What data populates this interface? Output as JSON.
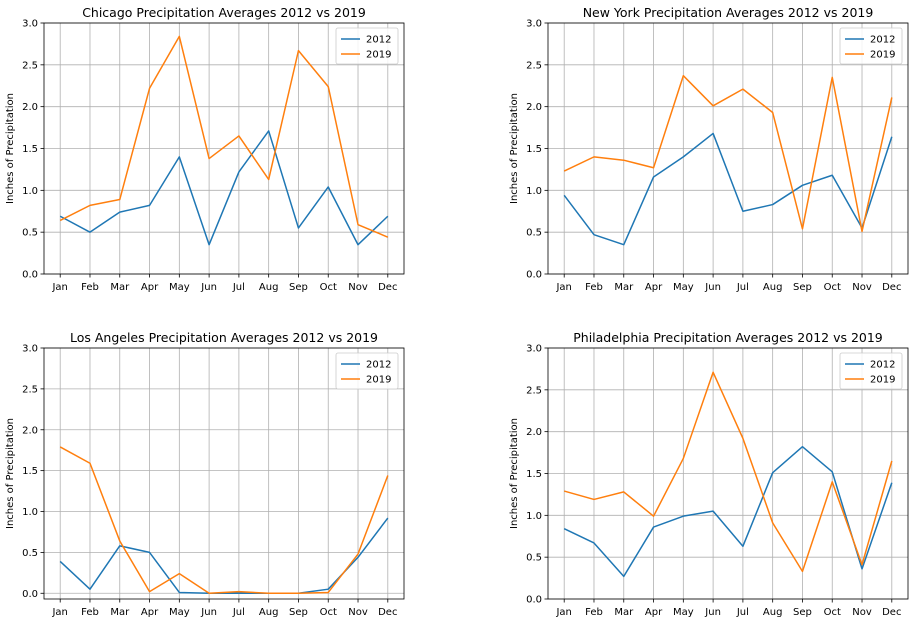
{
  "chart_data": [
    {
      "type": "line",
      "title": "Chicago Precipitation Averages 2012 vs 2019",
      "xlabel": "",
      "ylabel": "Inches of Precipitation",
      "categories": [
        "Jan",
        "Feb",
        "Mar",
        "Apr",
        "May",
        "Jun",
        "Jul",
        "Aug",
        "Sep",
        "Oct",
        "Nov",
        "Dec"
      ],
      "ylim": [
        0,
        3.0
      ],
      "yticks": [
        "0.0",
        "0.5",
        "1.0",
        "1.5",
        "2.0",
        "2.5",
        "3.0"
      ],
      "grid": true,
      "legend": "top-right",
      "series": [
        {
          "name": "2012",
          "color": "#1f77b4",
          "values": [
            0.69,
            0.5,
            0.74,
            0.82,
            1.4,
            0.35,
            1.22,
            1.71,
            0.55,
            1.04,
            0.35,
            0.69
          ]
        },
        {
          "name": "2019",
          "color": "#ff7f0e",
          "values": [
            0.64,
            0.82,
            0.89,
            2.22,
            2.84,
            1.38,
            1.65,
            1.13,
            2.67,
            2.24,
            0.59,
            0.44
          ]
        }
      ]
    },
    {
      "type": "line",
      "title": "New York Precipitation Averages 2012 vs 2019",
      "xlabel": "",
      "ylabel": "Inches of Precipitation",
      "categories": [
        "Jan",
        "Feb",
        "Mar",
        "Apr",
        "May",
        "Jun",
        "Jul",
        "Aug",
        "Sep",
        "Oct",
        "Nov",
        "Dec"
      ],
      "ylim": [
        0,
        3.0
      ],
      "yticks": [
        "0.0",
        "0.5",
        "1.0",
        "1.5",
        "2.0",
        "2.5",
        "3.0"
      ],
      "grid": true,
      "legend": "top-right",
      "series": [
        {
          "name": "2012",
          "color": "#1f77b4",
          "values": [
            0.94,
            0.47,
            0.35,
            1.16,
            1.4,
            1.68,
            0.75,
            0.83,
            1.06,
            1.18,
            0.55,
            1.64
          ]
        },
        {
          "name": "2019",
          "color": "#ff7f0e",
          "values": [
            1.23,
            1.4,
            1.36,
            1.27,
            2.37,
            2.01,
            2.21,
            1.93,
            0.54,
            2.35,
            0.51,
            2.11
          ]
        }
      ]
    },
    {
      "type": "line",
      "title": "Los Angeles Precipitation Averages 2012 vs 2019",
      "xlabel": "",
      "ylabel": "Inches of Precipitation",
      "categories": [
        "Jan",
        "Feb",
        "Mar",
        "Apr",
        "May",
        "Jun",
        "Jul",
        "Aug",
        "Sep",
        "Oct",
        "Nov",
        "Dec"
      ],
      "ylim": [
        -0.07,
        3.0
      ],
      "yticks": [
        "0.0",
        "0.5",
        "1.0",
        "1.5",
        "2.0",
        "2.5",
        "3.0"
      ],
      "grid": true,
      "legend": "top-right",
      "series": [
        {
          "name": "2012",
          "color": "#1f77b4",
          "values": [
            0.39,
            0.05,
            0.58,
            0.5,
            0.01,
            0.0,
            0.0,
            0.0,
            0.0,
            0.05,
            0.44,
            0.92
          ]
        },
        {
          "name": "2019",
          "color": "#ff7f0e",
          "values": [
            1.79,
            1.59,
            0.64,
            0.02,
            0.24,
            0.0,
            0.02,
            0.0,
            0.0,
            0.01,
            0.48,
            1.44
          ]
        }
      ]
    },
    {
      "type": "line",
      "title": "Philadelphia Precipitation Averages 2012 vs 2019",
      "xlabel": "",
      "ylabel": "Inches of Precipitation",
      "categories": [
        "Jan",
        "Feb",
        "Mar",
        "Apr",
        "May",
        "Jun",
        "Jul",
        "Aug",
        "Sep",
        "Oct",
        "Nov",
        "Dec"
      ],
      "ylim": [
        0,
        3.0
      ],
      "yticks": [
        "0.0",
        "0.5",
        "1.0",
        "1.5",
        "2.0",
        "2.5",
        "3.0"
      ],
      "grid": true,
      "legend": "top-right",
      "series": [
        {
          "name": "2012",
          "color": "#1f77b4",
          "values": [
            0.84,
            0.67,
            0.27,
            0.86,
            0.99,
            1.05,
            0.63,
            1.51,
            1.82,
            1.52,
            0.36,
            1.39
          ]
        },
        {
          "name": "2019",
          "color": "#ff7f0e",
          "values": [
            1.29,
            1.19,
            1.28,
            0.99,
            1.68,
            2.71,
            1.92,
            0.91,
            0.33,
            1.4,
            0.41,
            1.65
          ]
        }
      ]
    }
  ]
}
